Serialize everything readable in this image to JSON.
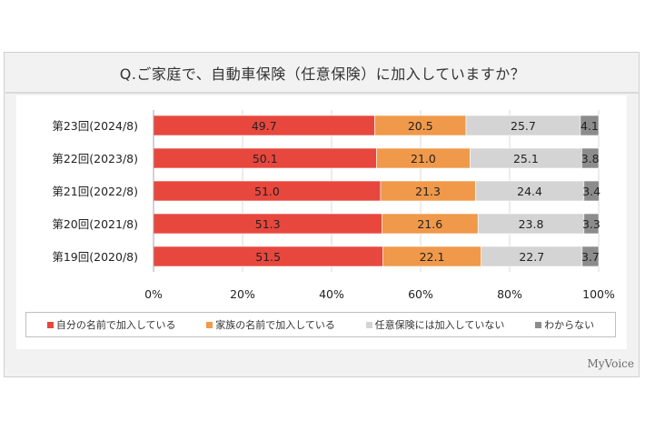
{
  "chart_data": {
    "type": "bar",
    "orientation": "horizontal",
    "stacked": true,
    "title": "Q.ご家庭で、自動車保険（任意保険）に加入していますか？",
    "categories": [
      "第23回(2024/8)",
      "第22回(2023/8)",
      "第21回(2022/8)",
      "第20回(2021/8)",
      "第19回(2020/8)"
    ],
    "series": [
      {
        "name": "自分の名前で加入している",
        "color": "#e8473e",
        "values": [
          49.7,
          50.1,
          51.0,
          51.3,
          51.5
        ]
      },
      {
        "name": "家族の名前で加入している",
        "color": "#f0994a",
        "values": [
          20.5,
          21.0,
          21.3,
          21.6,
          22.1
        ]
      },
      {
        "name": "任意保険には加入していない",
        "color": "#d4d4d4",
        "values": [
          25.7,
          25.1,
          24.4,
          23.8,
          22.7
        ]
      },
      {
        "name": "わからない",
        "color": "#8c8c8c",
        "values": [
          4.1,
          3.8,
          3.4,
          3.3,
          3.7
        ]
      }
    ],
    "xlim": [
      0,
      100
    ],
    "xticks": [
      "0%",
      "20%",
      "40%",
      "60%",
      "80%",
      "100%"
    ],
    "grid": true,
    "legend_position": "bottom"
  },
  "brand": "MyVoice"
}
